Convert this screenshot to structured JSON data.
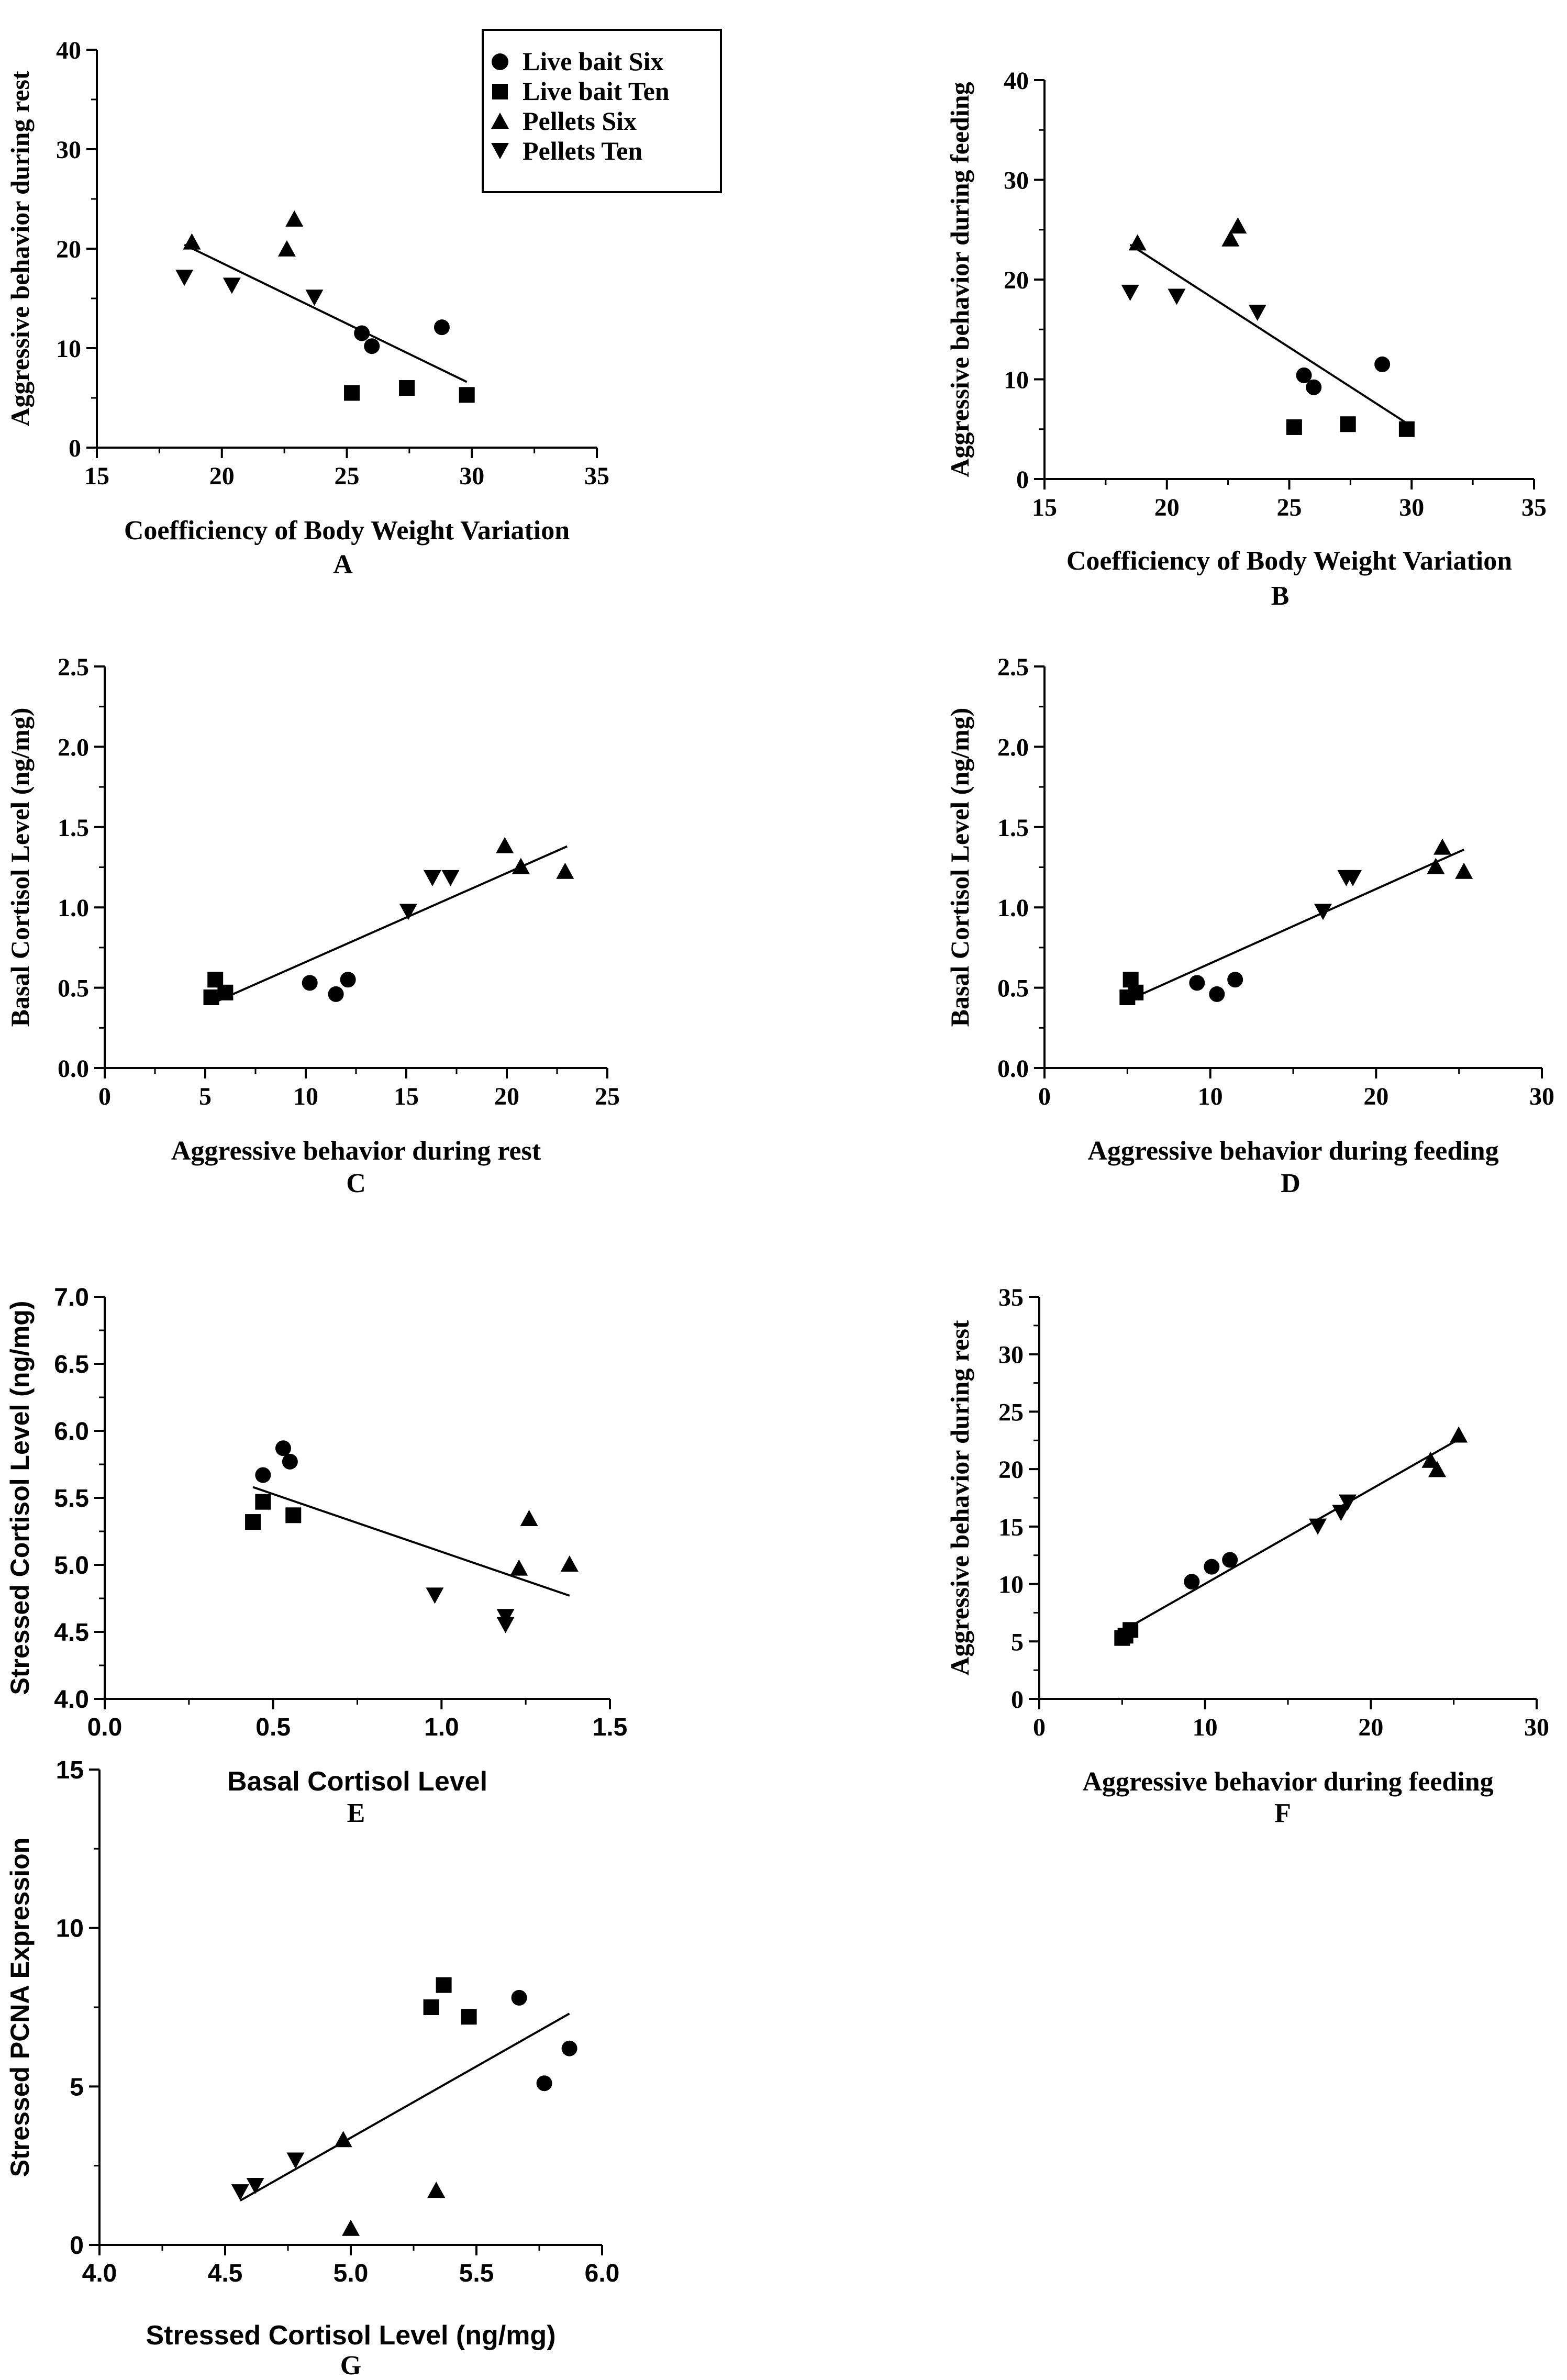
{
  "legend": {
    "entries": [
      {
        "label": "Live bait Six",
        "marker": "circle-marker"
      },
      {
        "label": "Live bait Ten",
        "marker": "square-marker"
      },
      {
        "label": "Pellets Six",
        "marker": "triangle-up-marker"
      },
      {
        "label": "Pellets Ten",
        "marker": "triangle-down-marker"
      }
    ]
  },
  "chart_data": [
    {
      "panel": "A",
      "type": "scatter",
      "xlabel": "Coefficiency of Body Weight  Variation",
      "ylabel": "Aggressive behavior during rest",
      "xlim": [
        15,
        35
      ],
      "ylim": [
        0,
        40
      ],
      "xticks": [
        "15",
        "20",
        "25",
        "30",
        "35"
      ],
      "yticks": [
        "0",
        "10",
        "20",
        "30",
        "40"
      ],
      "series": [
        {
          "name": "Live bait Six",
          "points": [
            [
              25.6,
              11.5
            ],
            [
              26.0,
              10.2
            ],
            [
              28.8,
              12.1
            ]
          ]
        },
        {
          "name": "Live bait Ten",
          "points": [
            [
              25.2,
              5.5
            ],
            [
              27.4,
              6.0
            ],
            [
              29.8,
              5.3
            ]
          ]
        },
        {
          "name": "Pellets Six",
          "points": [
            [
              18.8,
              20.6
            ],
            [
              22.6,
              19.9
            ],
            [
              22.9,
              22.9
            ]
          ]
        },
        {
          "name": "Pellets Ten",
          "points": [
            [
              18.5,
              17.2
            ],
            [
              20.4,
              16.4
            ],
            [
              23.7,
              15.2
            ]
          ]
        }
      ],
      "fit": [
        [
          18.5,
          20.4
        ],
        [
          29.8,
          6.6
        ]
      ]
    },
    {
      "panel": "B",
      "type": "scatter",
      "xlabel": "Coefficiency of Body Weight  Variation",
      "ylabel": "Aggressive behavior during feeding",
      "xlim": [
        15,
        35
      ],
      "ylim": [
        0,
        40
      ],
      "xticks": [
        "15",
        "20",
        "25",
        "30",
        "35"
      ],
      "yticks": [
        "0",
        "10",
        "20",
        "30",
        "40"
      ],
      "series": [
        {
          "name": "Live bait Six",
          "points": [
            [
              25.6,
              10.4
            ],
            [
              26.0,
              9.2
            ],
            [
              28.8,
              11.5
            ]
          ]
        },
        {
          "name": "Live bait Ten",
          "points": [
            [
              25.2,
              5.2
            ],
            [
              27.4,
              5.5
            ],
            [
              29.8,
              5.0
            ]
          ]
        },
        {
          "name": "Pellets Six",
          "points": [
            [
              18.8,
              23.6
            ],
            [
              22.6,
              24.0
            ],
            [
              22.9,
              25.3
            ]
          ]
        },
        {
          "name": "Pellets Ten",
          "points": [
            [
              18.5,
              18.8
            ],
            [
              20.4,
              18.4
            ],
            [
              23.7,
              16.8
            ]
          ]
        }
      ],
      "fit": [
        [
          18.5,
          23.5
        ],
        [
          29.8,
          5.6
        ]
      ]
    },
    {
      "panel": "C",
      "type": "scatter",
      "xlabel": "Aggressive behavior during rest",
      "ylabel": "Basal Cortisol Level (ng/mg)",
      "xlim": [
        0,
        25
      ],
      "ylim": [
        0,
        2.5
      ],
      "xticks": [
        "0",
        "5",
        "10",
        "15",
        "20",
        "25"
      ],
      "yticks": [
        "0.0",
        "0.5",
        "1.0",
        "1.5",
        "2.0",
        "2.5"
      ],
      "series": [
        {
          "name": "Live bait Six",
          "points": [
            [
              10.2,
              0.53
            ],
            [
              11.5,
              0.46
            ],
            [
              12.1,
              0.55
            ]
          ]
        },
        {
          "name": "Live bait Ten",
          "points": [
            [
              5.3,
              0.44
            ],
            [
              5.5,
              0.55
            ],
            [
              6.0,
              0.47
            ]
          ]
        },
        {
          "name": "Pellets Six",
          "points": [
            [
              19.9,
              1.38
            ],
            [
              20.7,
              1.25
            ],
            [
              22.9,
              1.22
            ]
          ]
        },
        {
          "name": "Pellets Ten",
          "points": [
            [
              15.1,
              0.98
            ],
            [
              16.3,
              1.19
            ],
            [
              17.2,
              1.19
            ]
          ]
        }
      ],
      "fit": [
        [
          5.3,
          0.4
        ],
        [
          23.0,
          1.38
        ]
      ]
    },
    {
      "panel": "D",
      "type": "scatter",
      "xlabel": "Aggressive behavior during feeding",
      "ylabel": "Basal Cortisol Level (ng/mg)",
      "xlim": [
        0,
        30
      ],
      "ylim": [
        0,
        2.5
      ],
      "xticks": [
        "0",
        "10",
        "20",
        "30"
      ],
      "yticks": [
        "0.0",
        "0.5",
        "1.0",
        "1.5",
        "2.0",
        "2.5"
      ],
      "series": [
        {
          "name": "Live bait Six",
          "points": [
            [
              9.2,
              0.53
            ],
            [
              10.4,
              0.46
            ],
            [
              11.5,
              0.55
            ]
          ]
        },
        {
          "name": "Live bait Ten",
          "points": [
            [
              5.0,
              0.44
            ],
            [
              5.2,
              0.55
            ],
            [
              5.5,
              0.47
            ]
          ]
        },
        {
          "name": "Pellets Six",
          "points": [
            [
              23.6,
              1.25
            ],
            [
              24.0,
              1.37
            ],
            [
              25.3,
              1.22
            ]
          ]
        },
        {
          "name": "Pellets Ten",
          "points": [
            [
              16.8,
              0.98
            ],
            [
              18.2,
              1.19
            ],
            [
              18.6,
              1.19
            ]
          ]
        }
      ],
      "fit": [
        [
          5.0,
          0.42
        ],
        [
          25.3,
          1.36
        ]
      ]
    },
    {
      "panel": "E",
      "type": "scatter",
      "xlabel": "Basal Cortisol Level",
      "ylabel": "Stressed Cortisol Level (ng/mg)",
      "xlim": [
        0,
        1.5
      ],
      "ylim": [
        4.0,
        7.0
      ],
      "xticks": [
        "0.0",
        "0.5",
        "1.0",
        "1.5"
      ],
      "yticks": [
        "4.0",
        "4.5",
        "5.0",
        "5.5",
        "6.0",
        "6.5",
        "7.0"
      ],
      "series": [
        {
          "name": "Live bait Six",
          "points": [
            [
              0.47,
              5.67
            ],
            [
              0.53,
              5.87
            ],
            [
              0.55,
              5.77
            ]
          ]
        },
        {
          "name": "Live bait Ten",
          "points": [
            [
              0.44,
              5.32
            ],
            [
              0.47,
              5.47
            ],
            [
              0.56,
              5.37
            ]
          ]
        },
        {
          "name": "Pellets Six",
          "points": [
            [
              1.23,
              4.97
            ],
            [
              1.26,
              5.34
            ],
            [
              1.38,
              5.0
            ]
          ]
        },
        {
          "name": "Pellets Ten",
          "points": [
            [
              0.98,
              4.78
            ],
            [
              1.19,
              4.62
            ],
            [
              1.19,
              4.56
            ]
          ]
        }
      ],
      "fit": [
        [
          0.44,
          5.58
        ],
        [
          1.38,
          4.77
        ]
      ]
    },
    {
      "panel": "F",
      "type": "scatter",
      "xlabel": "Aggressive behavior during feeding",
      "ylabel": "Aggressive behavior during rest",
      "xlim": [
        0,
        30
      ],
      "ylim": [
        0,
        35
      ],
      "xticks": [
        "0",
        "10",
        "20",
        "30"
      ],
      "yticks": [
        "0",
        "5",
        "10",
        "15",
        "20",
        "25",
        "30",
        "35"
      ],
      "series": [
        {
          "name": "Live bait Six",
          "points": [
            [
              9.2,
              10.2
            ],
            [
              10.4,
              11.5
            ],
            [
              11.5,
              12.1
            ]
          ]
        },
        {
          "name": "Live bait Ten",
          "points": [
            [
              5.0,
              5.3
            ],
            [
              5.2,
              5.5
            ],
            [
              5.5,
              6.0
            ]
          ]
        },
        {
          "name": "Pellets Six",
          "points": [
            [
              23.6,
              20.7
            ],
            [
              24.0,
              19.9
            ],
            [
              25.3,
              22.9
            ]
          ]
        },
        {
          "name": "Pellets Ten",
          "points": [
            [
              16.8,
              15.1
            ],
            [
              18.2,
              16.3
            ],
            [
              18.6,
              17.2
            ]
          ]
        }
      ],
      "fit": [
        [
          5.0,
          5.9
        ],
        [
          25.3,
          22.6
        ]
      ]
    },
    {
      "panel": "G",
      "type": "scatter",
      "xlabel": "Stressed Cortisol Level (ng/mg)",
      "ylabel": "Stressed PCNA Expression",
      "xlim": [
        4.0,
        6.0
      ],
      "ylim": [
        0,
        15
      ],
      "xticks": [
        "4.0",
        "4.5",
        "5.0",
        "5.5",
        "6.0"
      ],
      "yticks": [
        "0",
        "5",
        "10",
        "15"
      ],
      "series": [
        {
          "name": "Live bait Six",
          "points": [
            [
              5.67,
              7.8
            ],
            [
              5.77,
              5.1
            ],
            [
              5.87,
              6.2
            ]
          ]
        },
        {
          "name": "Live bait Ten",
          "points": [
            [
              5.32,
              7.5
            ],
            [
              5.37,
              8.2
            ],
            [
              5.47,
              7.2
            ]
          ]
        },
        {
          "name": "Pellets Six",
          "points": [
            [
              4.97,
              3.3
            ],
            [
              5.0,
              0.5
            ],
            [
              5.34,
              1.7
            ]
          ]
        },
        {
          "name": "Pellets Ten",
          "points": [
            [
              4.56,
              1.7
            ],
            [
              4.62,
              1.9
            ],
            [
              4.78,
              2.7
            ]
          ]
        }
      ],
      "fit": [
        [
          4.56,
          1.4
        ],
        [
          5.87,
          7.3
        ]
      ]
    }
  ]
}
